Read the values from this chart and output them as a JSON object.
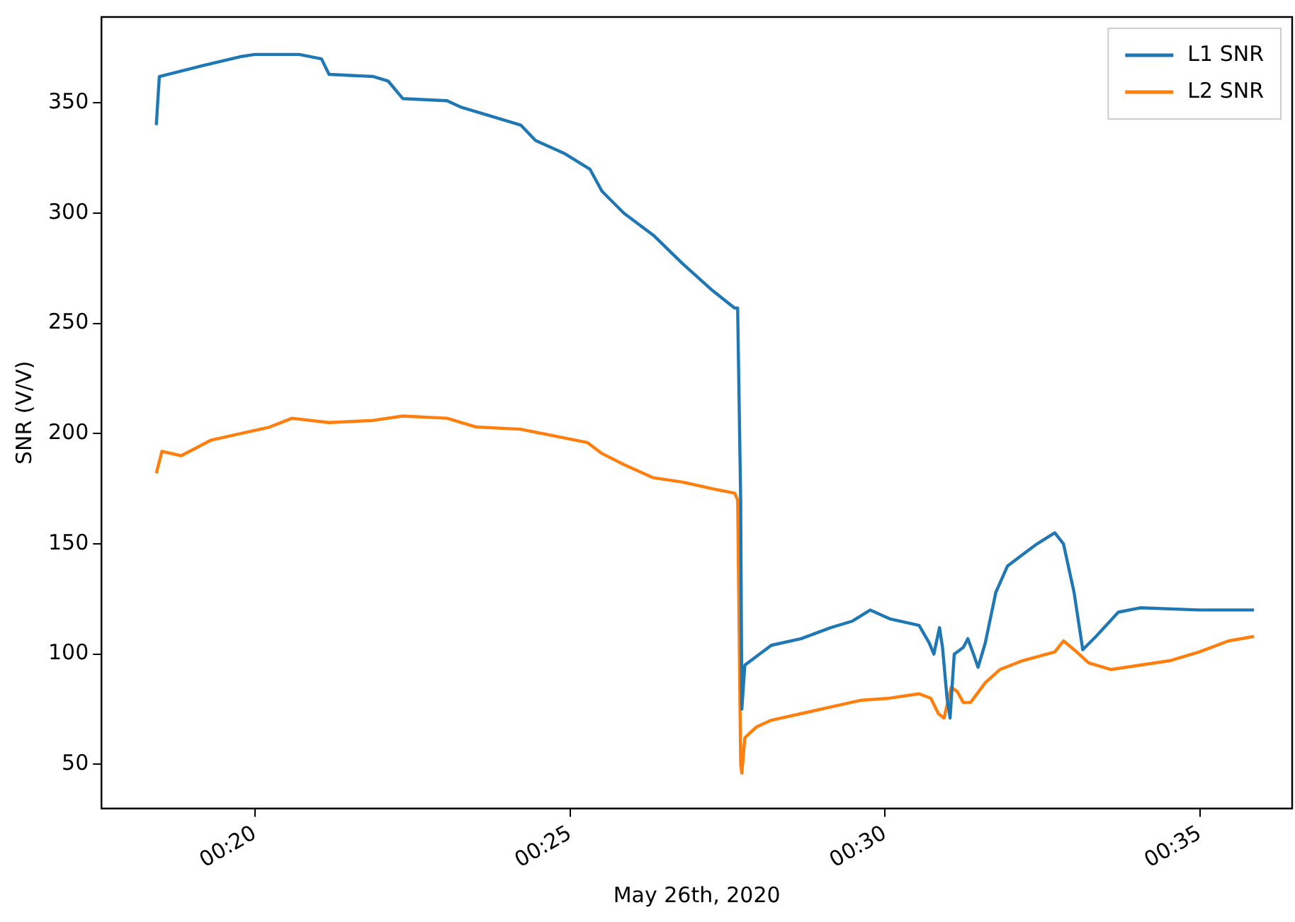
{
  "chart_data": {
    "type": "line",
    "xlabel": "May 26th, 2020",
    "ylabel": "SNR (V/V)",
    "xlim": [
      0.2927,
      0.6077
    ],
    "ylim": [
      30,
      389
    ],
    "xticks": [
      {
        "value": 0.3333,
        "label": "00:20"
      },
      {
        "value": 0.4167,
        "label": "00:25"
      },
      {
        "value": 0.5,
        "label": "00:30"
      },
      {
        "value": 0.5833,
        "label": "00:35"
      }
    ],
    "yticks": [
      50,
      100,
      150,
      200,
      250,
      300,
      350
    ],
    "legend": "top right",
    "grid": false,
    "marker": "none",
    "line_style": "solid",
    "series": [
      {
        "name": "L1 SNR",
        "color": "#1f77b4",
        "x": [
          0.3072,
          0.308,
          0.3197,
          0.3294,
          0.3333,
          0.345,
          0.3509,
          0.3529,
          0.3646,
          0.3685,
          0.3724,
          0.3841,
          0.388,
          0.3958,
          0.4036,
          0.4075,
          0.4153,
          0.4219,
          0.4251,
          0.4309,
          0.4387,
          0.4465,
          0.4543,
          0.4602,
          0.461,
          0.4618,
          0.4621,
          0.4629,
          0.4699,
          0.4778,
          0.4856,
          0.4914,
          0.4961,
          0.5012,
          0.509,
          0.5117,
          0.5129,
          0.5144,
          0.5152,
          0.5164,
          0.5172,
          0.5183,
          0.5207,
          0.5219,
          0.5234,
          0.5246,
          0.5265,
          0.5293,
          0.5324,
          0.5363,
          0.5402,
          0.5449,
          0.5472,
          0.55,
          0.5523,
          0.5558,
          0.5617,
          0.5675,
          0.5831,
          0.5976
        ],
        "values": [
          340,
          362,
          367,
          371,
          372,
          372,
          370,
          363,
          362,
          360,
          352,
          351,
          348,
          344,
          340,
          333,
          327,
          320,
          310,
          300,
          290,
          277,
          265,
          257,
          257,
          170,
          75,
          95,
          104,
          107,
          112,
          115,
          120,
          116,
          113,
          105,
          100,
          112,
          103,
          80,
          71,
          100,
          103,
          107,
          100,
          94,
          105,
          128,
          140,
          145,
          150,
          155,
          150,
          128,
          102,
          108,
          119,
          121,
          120,
          120
        ]
      },
      {
        "name": "L2 SNR",
        "color": "#ff7f0e",
        "x": [
          0.3072,
          0.3087,
          0.3138,
          0.3216,
          0.3294,
          0.3372,
          0.3431,
          0.3529,
          0.3646,
          0.3724,
          0.3841,
          0.3919,
          0.4036,
          0.4153,
          0.4212,
          0.4251,
          0.4309,
          0.4387,
          0.4465,
          0.4543,
          0.4602,
          0.461,
          0.4618,
          0.4621,
          0.4629,
          0.466,
          0.4699,
          0.4778,
          0.4856,
          0.4934,
          0.5012,
          0.509,
          0.5121,
          0.5141,
          0.5156,
          0.5175,
          0.5191,
          0.5207,
          0.5226,
          0.5265,
          0.5304,
          0.5363,
          0.5449,
          0.5472,
          0.55,
          0.5539,
          0.5597,
          0.5675,
          0.5753,
          0.5831,
          0.5909,
          0.5976
        ],
        "values": [
          182,
          192,
          190,
          197,
          200,
          203,
          207,
          205,
          206,
          208,
          207,
          203,
          202,
          198,
          196,
          191,
          186,
          180,
          178,
          175,
          173,
          170,
          50,
          46,
          62,
          67,
          70,
          73,
          76,
          79,
          80,
          82,
          80,
          73,
          71,
          85,
          83,
          78,
          78,
          87,
          93,
          97,
          101,
          106,
          102,
          96,
          93,
          95,
          97,
          101,
          106,
          108
        ]
      }
    ]
  }
}
